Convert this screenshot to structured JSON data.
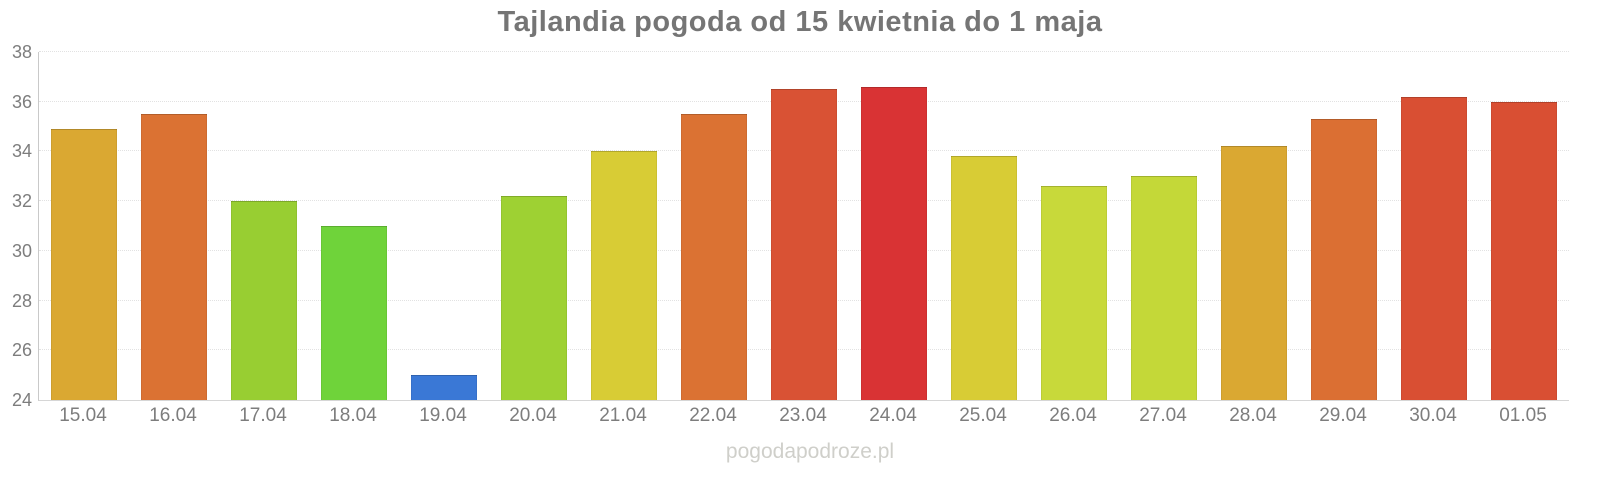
{
  "title": "Tajlandia pogoda od 15 kwietnia do 1 maja",
  "watermark": "pogodapodroze.pl",
  "chart_data": {
    "type": "bar",
    "title": "Tajlandia pogoda od 15 kwietnia do 1 maja",
    "categories": [
      "15.04",
      "16.04",
      "17.04",
      "18.04",
      "19.04",
      "20.04",
      "21.04",
      "22.04",
      "23.04",
      "24.04",
      "25.04",
      "26.04",
      "27.04",
      "28.04",
      "29.04",
      "30.04",
      "01.05"
    ],
    "values": [
      34.9,
      35.5,
      32.0,
      31.0,
      25.0,
      32.2,
      34.0,
      35.5,
      36.5,
      36.6,
      33.8,
      32.6,
      33.0,
      34.2,
      35.3,
      36.2,
      36.0
    ],
    "bar_colors": [
      "#DAA832",
      "#DB7233",
      "#98CE32",
      "#6FD33A",
      "#3A78D6",
      "#9ED133",
      "#D8CC35",
      "#DB7233",
      "#D95234",
      "#D93334",
      "#D8CC35",
      "#C8D93A",
      "#C4D838",
      "#DAA832",
      "#DB6F33",
      "#D94F33",
      "#D94F33"
    ],
    "xlabel": "",
    "ylabel": "",
    "ylim": [
      24,
      38
    ],
    "yticks": [
      38,
      36,
      34,
      32,
      30,
      28,
      26,
      24
    ],
    "grid": true,
    "legend": "none",
    "axis_color": "#7d7d7d",
    "title_color": "#757575",
    "watermark_color": "#cfcfca"
  }
}
